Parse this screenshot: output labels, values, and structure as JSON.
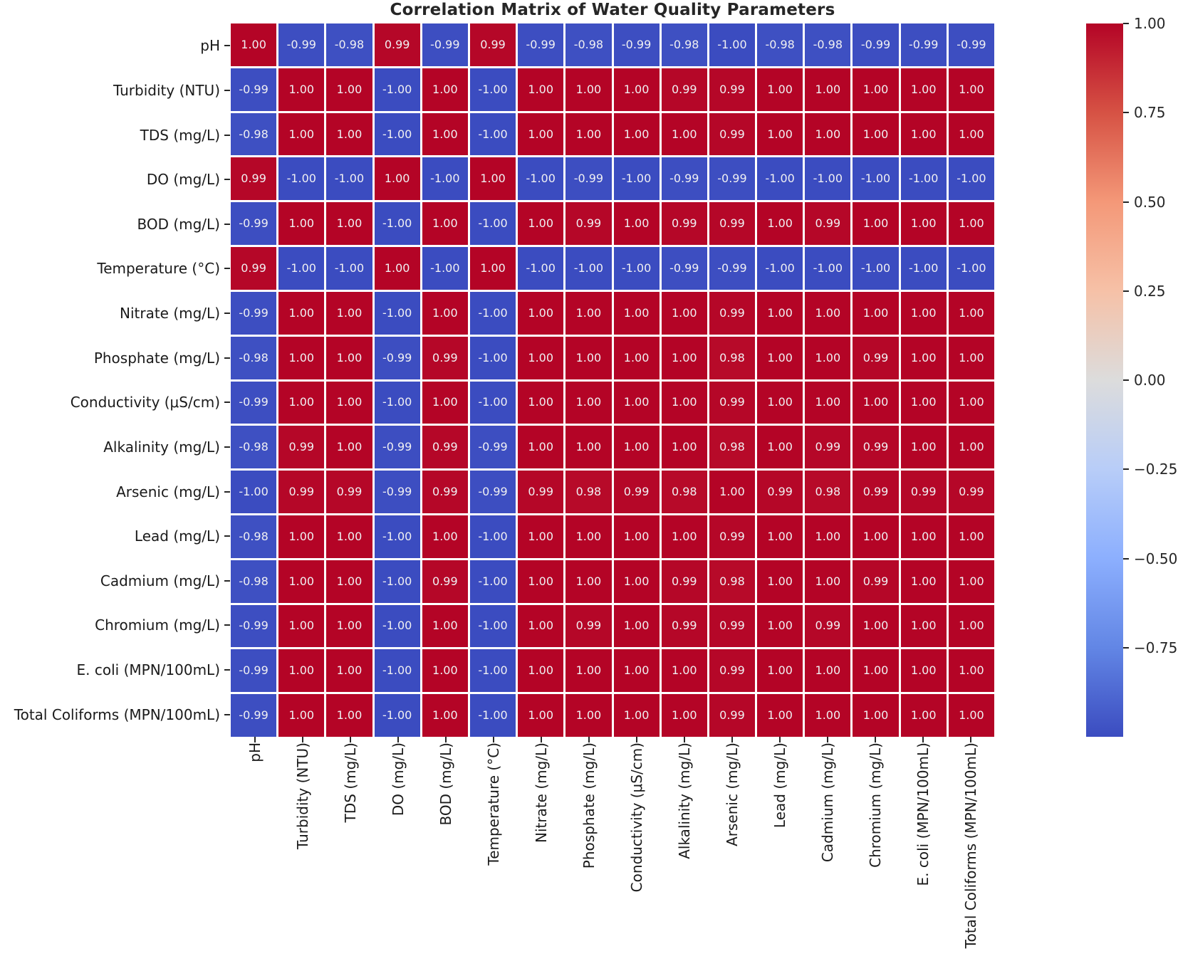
{
  "title": "Correlation Matrix of Water Quality Parameters",
  "chart_data": {
    "type": "heatmap",
    "title": "Correlation Matrix of Water Quality Parameters",
    "parameters": [
      "pH",
      "Turbidity (NTU)",
      "TDS (mg/L)",
      "DO (mg/L)",
      "BOD (mg/L)",
      "Temperature (°C)",
      "Nitrate (mg/L)",
      "Phosphate (mg/L)",
      "Conductivity (μS/cm)",
      "Alkalinity (mg/L)",
      "Arsenic (mg/L)",
      "Lead (mg/L)",
      "Cadmium (mg/L)",
      "Chromium (mg/L)",
      "E. coli (MPN/100mL)",
      "Total Coliforms (MPN/100mL)"
    ],
    "matrix": [
      [
        1.0,
        -0.99,
        -0.98,
        0.99,
        -0.99,
        0.99,
        -0.99,
        -0.98,
        -0.99,
        -0.98,
        -1.0,
        -0.98,
        -0.98,
        -0.99,
        -0.99,
        -0.99
      ],
      [
        -0.99,
        1.0,
        1.0,
        -1.0,
        1.0,
        -1.0,
        1.0,
        1.0,
        1.0,
        0.99,
        0.99,
        1.0,
        1.0,
        1.0,
        1.0,
        1.0
      ],
      [
        -0.98,
        1.0,
        1.0,
        -1.0,
        1.0,
        -1.0,
        1.0,
        1.0,
        1.0,
        1.0,
        0.99,
        1.0,
        1.0,
        1.0,
        1.0,
        1.0
      ],
      [
        0.99,
        -1.0,
        -1.0,
        1.0,
        -1.0,
        1.0,
        -1.0,
        -0.99,
        -1.0,
        -0.99,
        -0.99,
        -1.0,
        -1.0,
        -1.0,
        -1.0,
        -1.0
      ],
      [
        -0.99,
        1.0,
        1.0,
        -1.0,
        1.0,
        -1.0,
        1.0,
        0.99,
        1.0,
        0.99,
        0.99,
        1.0,
        0.99,
        1.0,
        1.0,
        1.0
      ],
      [
        0.99,
        -1.0,
        -1.0,
        1.0,
        -1.0,
        1.0,
        -1.0,
        -1.0,
        -1.0,
        -0.99,
        -0.99,
        -1.0,
        -1.0,
        -1.0,
        -1.0,
        -1.0
      ],
      [
        -0.99,
        1.0,
        1.0,
        -1.0,
        1.0,
        -1.0,
        1.0,
        1.0,
        1.0,
        1.0,
        0.99,
        1.0,
        1.0,
        1.0,
        1.0,
        1.0
      ],
      [
        -0.98,
        1.0,
        1.0,
        -0.99,
        0.99,
        -1.0,
        1.0,
        1.0,
        1.0,
        1.0,
        0.98,
        1.0,
        1.0,
        0.99,
        1.0,
        1.0
      ],
      [
        -0.99,
        1.0,
        1.0,
        -1.0,
        1.0,
        -1.0,
        1.0,
        1.0,
        1.0,
        1.0,
        0.99,
        1.0,
        1.0,
        1.0,
        1.0,
        1.0
      ],
      [
        -0.98,
        0.99,
        1.0,
        -0.99,
        0.99,
        -0.99,
        1.0,
        1.0,
        1.0,
        1.0,
        0.98,
        1.0,
        0.99,
        0.99,
        1.0,
        1.0
      ],
      [
        -1.0,
        0.99,
        0.99,
        -0.99,
        0.99,
        -0.99,
        0.99,
        0.98,
        0.99,
        0.98,
        1.0,
        0.99,
        0.98,
        0.99,
        0.99,
        0.99
      ],
      [
        -0.98,
        1.0,
        1.0,
        -1.0,
        1.0,
        -1.0,
        1.0,
        1.0,
        1.0,
        1.0,
        0.99,
        1.0,
        1.0,
        1.0,
        1.0,
        1.0
      ],
      [
        -0.98,
        1.0,
        1.0,
        -1.0,
        0.99,
        -1.0,
        1.0,
        1.0,
        1.0,
        0.99,
        0.98,
        1.0,
        1.0,
        0.99,
        1.0,
        1.0
      ],
      [
        -0.99,
        1.0,
        1.0,
        -1.0,
        1.0,
        -1.0,
        1.0,
        0.99,
        1.0,
        0.99,
        0.99,
        1.0,
        0.99,
        1.0,
        1.0,
        1.0
      ],
      [
        -0.99,
        1.0,
        1.0,
        -1.0,
        1.0,
        -1.0,
        1.0,
        1.0,
        1.0,
        1.0,
        0.99,
        1.0,
        1.0,
        1.0,
        1.0,
        1.0
      ],
      [
        -0.99,
        1.0,
        1.0,
        -1.0,
        1.0,
        -1.0,
        1.0,
        1.0,
        1.0,
        1.0,
        0.99,
        1.0,
        1.0,
        1.0,
        1.0,
        1.0
      ]
    ],
    "vmin": -1.0,
    "vmax": 1.0,
    "colormap": "coolwarm",
    "colormap_colors": {
      "min": "#3b4cc0",
      "mid": "#dddcdb",
      "max": "#b40426"
    },
    "annotation_decimals": 2,
    "annotation_color": "#f0f0f2",
    "gridline_color": "#ffffff",
    "legend_position": "right",
    "colorbar": {
      "tick_values": [
        1.0,
        0.75,
        0.5,
        0.25,
        0.0,
        -0.25,
        -0.5,
        -0.75
      ],
      "tick_labels": [
        "1.00",
        "0.75",
        "0.50",
        "0.25",
        "0.00",
        "−0.25",
        "−0.50",
        "−0.75"
      ]
    }
  }
}
